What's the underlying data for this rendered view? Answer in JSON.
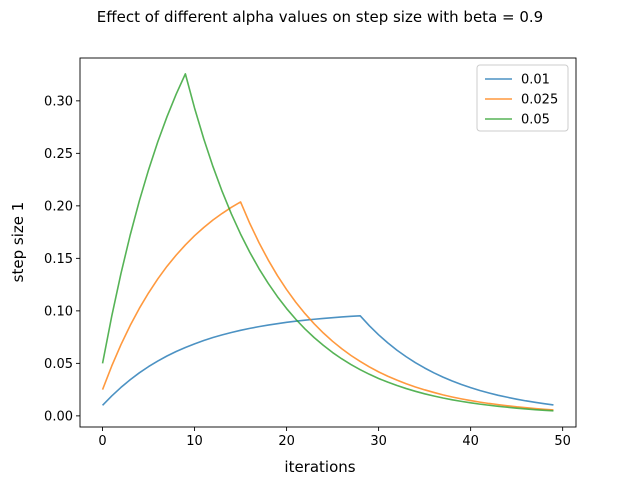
{
  "chart_data": {
    "type": "line",
    "title": "Effect of different alpha values on step size with beta = 0.9",
    "xlabel": "iterations",
    "ylabel": "step size 1",
    "xlim": [
      -2.45,
      51.45
    ],
    "ylim": [
      -0.0106,
      0.3408
    ],
    "xticks": [
      0,
      10,
      20,
      30,
      40,
      50
    ],
    "yticks": [
      0.0,
      0.05,
      0.1,
      0.15,
      0.2,
      0.25,
      0.3
    ],
    "ytick_labels": [
      "0.00",
      "0.05",
      "0.10",
      "0.15",
      "0.20",
      "0.25",
      "0.30"
    ],
    "grid": false,
    "legend": "upper-right",
    "series": [
      {
        "name": "0.01",
        "color": "#1f77b4",
        "x": [
          0,
          1,
          2,
          3,
          4,
          5,
          6,
          7,
          8,
          9,
          10,
          11,
          12,
          13,
          14,
          15,
          16,
          17,
          18,
          19,
          20,
          21,
          22,
          23,
          24,
          25,
          26,
          27,
          28,
          29,
          30,
          31,
          32,
          33,
          34,
          35,
          36,
          37,
          38,
          39,
          40,
          41,
          42,
          43,
          44,
          45,
          46,
          47,
          48,
          49
        ],
        "values": [
          0.01,
          0.019,
          0.0271,
          0.0344,
          0.041,
          0.0469,
          0.0522,
          0.057,
          0.0613,
          0.0651,
          0.0686,
          0.0718,
          0.0746,
          0.0771,
          0.0794,
          0.0815,
          0.0833,
          0.085,
          0.0865,
          0.0878,
          0.0891,
          0.0902,
          0.0911,
          0.092,
          0.0928,
          0.0935,
          0.0942,
          0.0948,
          0.0953,
          0.0858,
          0.0772,
          0.0695,
          0.0625,
          0.0563,
          0.0506,
          0.0456,
          0.041,
          0.0369,
          0.0332,
          0.0299,
          0.0269,
          0.0242,
          0.0218,
          0.0196,
          0.0177,
          0.0159,
          0.0143,
          0.0129,
          0.0116,
          0.0104
        ]
      },
      {
        "name": "0.025",
        "color": "#ff7f0e",
        "x": [
          0,
          1,
          2,
          3,
          4,
          5,
          6,
          7,
          8,
          9,
          10,
          11,
          12,
          13,
          14,
          15,
          16,
          17,
          18,
          19,
          20,
          21,
          22,
          23,
          24,
          25,
          26,
          27,
          28,
          29,
          30,
          31,
          32,
          33,
          34,
          35,
          36,
          37,
          38,
          39,
          40,
          41,
          42,
          43,
          44,
          45,
          46,
          47,
          48,
          49
        ],
        "values": [
          0.025,
          0.0475,
          0.0678,
          0.086,
          0.1024,
          0.1171,
          0.1304,
          0.1424,
          0.1531,
          0.1628,
          0.1716,
          0.1794,
          0.1865,
          0.1928,
          0.1986,
          0.2037,
          0.1833,
          0.165,
          0.1485,
          0.1336,
          0.1203,
          0.1082,
          0.0974,
          0.0877,
          0.0789,
          0.071,
          0.0639,
          0.0575,
          0.0518,
          0.0466,
          0.0419,
          0.0377,
          0.034,
          0.0306,
          0.0275,
          0.0248,
          0.0223,
          0.02,
          0.018,
          0.0162,
          0.0146,
          0.0131,
          0.0118,
          0.0107,
          0.0096,
          0.0086,
          0.0078,
          0.007,
          0.0063,
          0.0057
        ]
      },
      {
        "name": "0.05",
        "color": "#2ca02c",
        "x": [
          0,
          1,
          2,
          3,
          4,
          5,
          6,
          7,
          8,
          9,
          10,
          11,
          12,
          13,
          14,
          15,
          16,
          17,
          18,
          19,
          20,
          21,
          22,
          23,
          24,
          25,
          26,
          27,
          28,
          29,
          30,
          31,
          32,
          33,
          34,
          35,
          36,
          37,
          38,
          39,
          40,
          41,
          42,
          43,
          44,
          45,
          46,
          47,
          48,
          49
        ],
        "values": [
          0.05,
          0.095,
          0.1355,
          0.172,
          0.2048,
          0.2343,
          0.2609,
          0.2848,
          0.3063,
          0.3257,
          0.2931,
          0.2638,
          0.2374,
          0.2137,
          0.1923,
          0.1731,
          0.1558,
          0.1402,
          0.1262,
          0.1136,
          0.1022,
          0.092,
          0.0828,
          0.0745,
          0.0671,
          0.0603,
          0.0543,
          0.0489,
          0.044,
          0.0396,
          0.0356,
          0.0321,
          0.0289,
          0.026,
          0.0234,
          0.021,
          0.0189,
          0.017,
          0.0153,
          0.0138,
          0.0124,
          0.0112,
          0.0101,
          0.0091,
          0.0082,
          0.0073,
          0.0066,
          0.0059,
          0.0053,
          0.0048
        ]
      }
    ]
  }
}
